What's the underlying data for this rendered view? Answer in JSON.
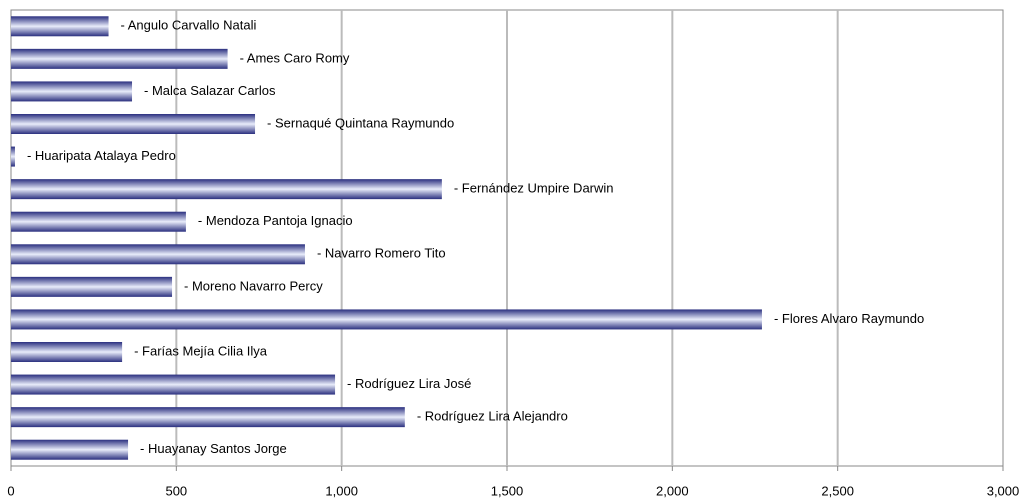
{
  "chart_data": {
    "type": "bar",
    "orientation": "horizontal",
    "categories": [
      "- Angulo Carvallo Natali",
      "- Ames Caro Romy",
      "- Malca Salazar Carlos",
      "- Sernaqué Quintana Raymundo",
      "- Huaripata Atalaya Pedro",
      "- Fernández Umpire Darwin",
      "- Mendoza Pantoja Ignacio",
      "- Navarro Romero Tito",
      "- Moreno Navarro Percy",
      "- Flores  Alvaro Raymundo",
      "- Farías Mejía Cilia Ilya",
      "- Rodríguez Lira José",
      "- Rodríguez Lira Alejandro",
      "- Huayanay Santos Jorge"
    ],
    "values": [
      295,
      655,
      366,
      738,
      12,
      1303,
      529,
      889,
      487,
      2271,
      336,
      980,
      1191,
      354
    ],
    "color": "#2a2f7f",
    "xlim": [
      0,
      3000
    ],
    "xticks": [
      0,
      500,
      {
        "value": 1000,
        "label": "1,000"
      },
      {
        "value": 1500,
        "label": "1,500"
      },
      {
        "value": 2000,
        "label": "2,000"
      },
      {
        "value": 2500,
        "label": "2,500"
      },
      {
        "value": 3000,
        "label": "3,000"
      }
    ],
    "grid": true
  }
}
